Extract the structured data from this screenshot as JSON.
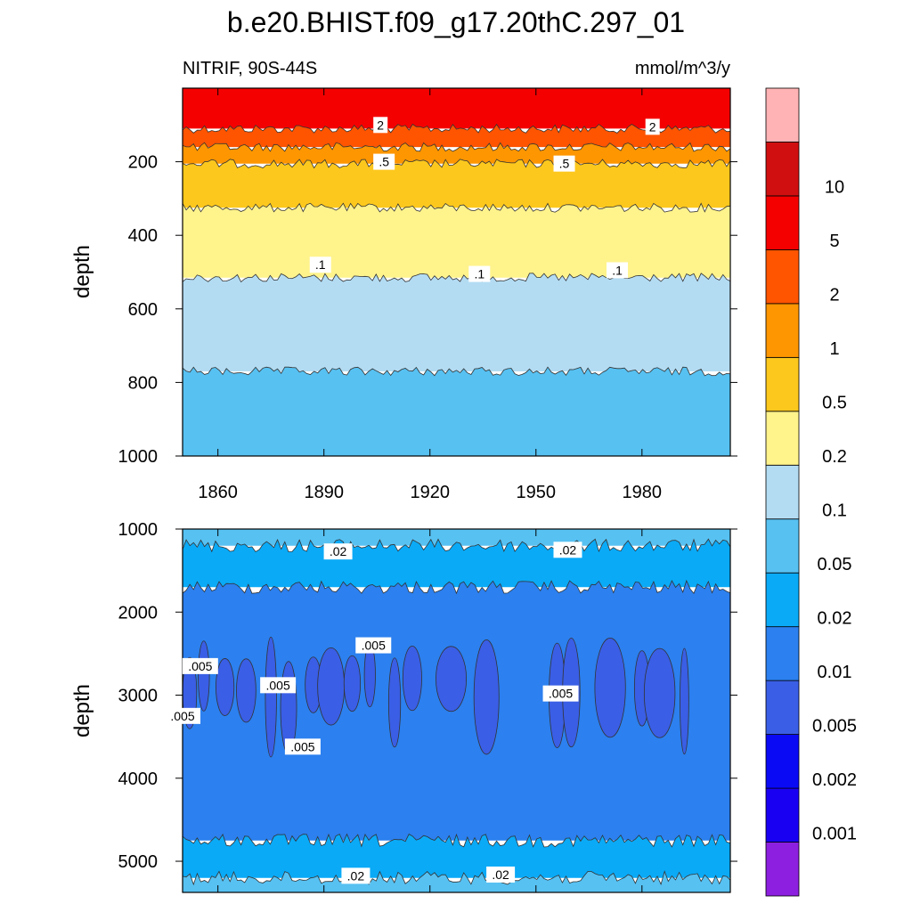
{
  "title": "b.e20.BHIST.f09_g17.20thC.297_01",
  "left_subtitle": "NITRIF, 90S-44S",
  "right_subtitle": "mmol/m^3/y",
  "colorbar": {
    "colors": [
      "#8C1FE0",
      "#1A00F2",
      "#0A0AF5",
      "#3A5EE5",
      "#2C80EF",
      "#0AAAF7",
      "#57C1F2",
      "#B3DCF3",
      "#FFF38C",
      "#FDC81D",
      "#FD9600",
      "#FF5400",
      "#F50000",
      "#D01010",
      "#FFB3B5"
    ],
    "labels": [
      "0.001",
      "0.002",
      "0.005",
      "0.01",
      "0.02",
      "0.05",
      "0.1",
      "0.2",
      "0.5",
      "1",
      "2",
      "5",
      "10"
    ]
  },
  "chart_data": [
    {
      "type": "heatmap",
      "name": "upper-panel",
      "ylabel": "depth",
      "xlim": [
        1850,
        2005
      ],
      "ylim": [
        0,
        1000
      ],
      "y_reversed": true,
      "xticks": [
        1860,
        1890,
        1920,
        1950,
        1980
      ],
      "yticks": [
        200,
        400,
        600,
        800,
        1000
      ],
      "bands": [
        {
          "top": 0,
          "bottom": 110,
          "color": "#F50000",
          "range": "2-5"
        },
        {
          "top": 110,
          "bottom": 160,
          "color": "#FF5400",
          "range": "1-2"
        },
        {
          "top": 160,
          "bottom": 205,
          "color": "#FD9600",
          "range": "0.5-1"
        },
        {
          "top": 205,
          "bottom": 325,
          "color": "#FDC81D",
          "range": "0.2-0.5"
        },
        {
          "top": 325,
          "bottom": 515,
          "color": "#FFF38C",
          "range": "0.1-0.2"
        },
        {
          "top": 515,
          "bottom": 770,
          "color": "#B3DCF3",
          "range": "0.05-0.1"
        },
        {
          "top": 770,
          "bottom": 1000,
          "color": "#57C1F2",
          "range": "0.02-0.05"
        }
      ],
      "contour_labels": [
        {
          "text": "2",
          "x": 1906,
          "y": 100
        },
        {
          "text": "2",
          "x": 1983,
          "y": 105
        },
        {
          "text": ".5",
          "x": 1907,
          "y": 200
        },
        {
          "text": ".5",
          "x": 1958,
          "y": 205
        },
        {
          "text": ".1",
          "x": 1889,
          "y": 480
        },
        {
          "text": ".1",
          "x": 1934,
          "y": 505
        },
        {
          "text": ".1",
          "x": 1973,
          "y": 495
        }
      ]
    },
    {
      "type": "heatmap",
      "name": "lower-panel",
      "ylabel": "depth",
      "xlim": [
        1850,
        2005
      ],
      "ylim": [
        1000,
        5375
      ],
      "y_reversed": true,
      "yticks": [
        1000,
        2000,
        3000,
        4000,
        5000
      ],
      "bands": [
        {
          "top": 1000,
          "bottom": 1200,
          "color": "#57C1F2",
          "range": "0.02-0.05"
        },
        {
          "top": 1200,
          "bottom": 1700,
          "color": "#0AAAF7",
          "range": "0.01-0.02"
        },
        {
          "top": 1700,
          "bottom": 4750,
          "color": "#2C80EF",
          "range": "0.005-0.01"
        },
        {
          "top": 4750,
          "bottom": 5200,
          "color": "#0AAAF7",
          "range": "0.01-0.02"
        },
        {
          "top": 5200,
          "bottom": 5375,
          "color": "#57C1F2",
          "range": "0.02-0.05"
        }
      ],
      "contour_labels": [
        {
          "text": ".02",
          "x": 1894,
          "y": 1270
        },
        {
          "text": ".02",
          "x": 1959,
          "y": 1250
        },
        {
          "text": ".005",
          "x": 1855,
          "y": 2650
        },
        {
          "text": ".005",
          "x": 1877,
          "y": 2880
        },
        {
          "text": ".005",
          "x": 1850,
          "y": 3250
        },
        {
          "text": ".005",
          "x": 1884,
          "y": 3620
        },
        {
          "text": ".005",
          "x": 1904,
          "y": 2400
        },
        {
          "text": ".005",
          "x": 1957,
          "y": 2980
        },
        {
          "text": ".02",
          "x": 1899,
          "y": 5175
        },
        {
          "text": ".02",
          "x": 1940,
          "y": 5160
        }
      ]
    }
  ]
}
